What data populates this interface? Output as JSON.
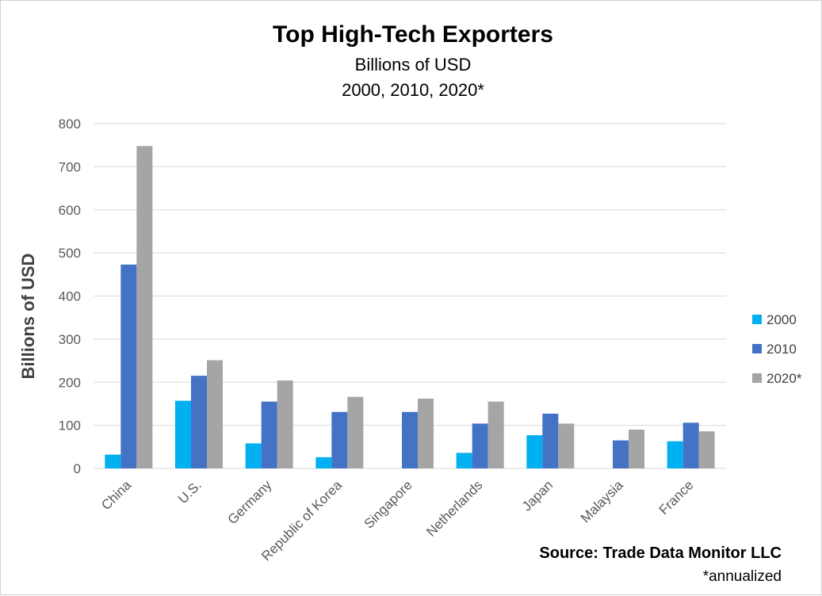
{
  "chart_data": {
    "type": "bar",
    "title": "Top High-Tech Exporters",
    "subtitle_lines": [
      "Billions of USD",
      "2000, 2010, 2020*"
    ],
    "ylabel": "Billions of USD",
    "xlabel": "",
    "ylim": [
      0,
      800
    ],
    "yticks": [
      0,
      100,
      200,
      300,
      400,
      500,
      600,
      700,
      800
    ],
    "grid": true,
    "legend_position": "right",
    "categories": [
      "China",
      "U.S.",
      "Germany",
      "Republic of Korea",
      "Singapore",
      "Netherlands",
      "Japan",
      "Malaysia",
      "France"
    ],
    "series": [
      {
        "name": "2000",
        "color": "#00b0f0",
        "values": [
          32,
          157,
          58,
          26,
          null,
          36,
          77,
          null,
          63
        ]
      },
      {
        "name": "2010",
        "color": "#4472c4",
        "values": [
          473,
          215,
          155,
          131,
          131,
          104,
          127,
          65,
          106
        ]
      },
      {
        "name": "2020*",
        "color": "#a5a5a5",
        "values": [
          748,
          251,
          204,
          166,
          162,
          155,
          104,
          90,
          86
        ]
      }
    ],
    "source": "Source: Trade Data Monitor LLC",
    "footnote": "*annualized"
  }
}
